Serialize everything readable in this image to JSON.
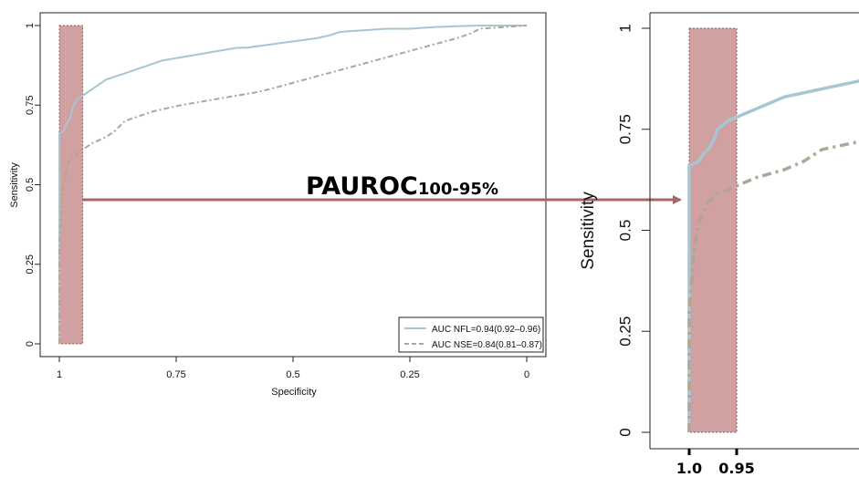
{
  "chart_data": [
    {
      "type": "line",
      "xlabel": "Specificity",
      "ylabel": "Sensitivity",
      "xlim": [
        1,
        0
      ],
      "ylim": [
        0,
        1
      ],
      "x_ticks": [
        "1",
        "0.75",
        "0.5",
        "0.25",
        "0"
      ],
      "y_ticks": [
        "0",
        "0.25",
        "0.5",
        "0.75",
        "1"
      ],
      "highlight_region": {
        "specificity_from": 1.0,
        "specificity_to": 0.95,
        "color": "#c98f8f"
      },
      "legend_position": "bottom-right",
      "series": [
        {
          "name": "AUC NFL=0.94(0.92–0.96)",
          "color": "#a8c6d2",
          "style": "solid",
          "x": [
            1.0,
            1.0,
            0.99,
            0.985,
            0.98,
            0.975,
            0.97,
            0.96,
            0.95,
            0.94,
            0.93,
            0.92,
            0.9,
            0.88,
            0.86,
            0.84,
            0.82,
            0.78,
            0.74,
            0.7,
            0.66,
            0.62,
            0.6,
            0.55,
            0.5,
            0.45,
            0.42,
            0.4,
            0.35,
            0.3,
            0.25,
            0.2,
            0.15,
            0.1,
            0.05,
            0.0
          ],
          "y": [
            0.0,
            0.66,
            0.67,
            0.69,
            0.7,
            0.72,
            0.75,
            0.77,
            0.78,
            0.79,
            0.8,
            0.81,
            0.83,
            0.84,
            0.85,
            0.86,
            0.87,
            0.89,
            0.9,
            0.91,
            0.92,
            0.93,
            0.93,
            0.94,
            0.95,
            0.96,
            0.97,
            0.98,
            0.985,
            0.99,
            0.99,
            0.995,
            0.998,
            1.0,
            1.0,
            1.0
          ]
        },
        {
          "name": "AUC NSE=0.84(0.81–0.87)",
          "color": "#b0a596",
          "style": "dashed",
          "x": [
            1.0,
            1.0,
            0.995,
            0.99,
            0.98,
            0.97,
            0.96,
            0.95,
            0.93,
            0.9,
            0.88,
            0.86,
            0.84,
            0.82,
            0.8,
            0.77,
            0.74,
            0.7,
            0.66,
            0.62,
            0.58,
            0.55,
            0.5,
            0.45,
            0.4,
            0.35,
            0.3,
            0.25,
            0.2,
            0.15,
            0.12,
            0.1,
            0.05,
            0.0
          ],
          "y": [
            0.0,
            0.3,
            0.45,
            0.52,
            0.57,
            0.59,
            0.6,
            0.61,
            0.63,
            0.65,
            0.67,
            0.7,
            0.71,
            0.72,
            0.73,
            0.74,
            0.75,
            0.76,
            0.77,
            0.78,
            0.79,
            0.8,
            0.82,
            0.84,
            0.86,
            0.88,
            0.9,
            0.92,
            0.94,
            0.96,
            0.975,
            0.99,
            0.995,
            1.0
          ]
        }
      ],
      "annotation": {
        "main": "PAUROC",
        "subscript": "100-95%",
        "arrow_color": "#a8646b"
      }
    },
    {
      "type": "line",
      "ylabel": "Sensitivity",
      "xlim": [
        1,
        0.63
      ],
      "ylim": [
        0,
        1
      ],
      "x_ticks": [
        "1.0",
        "0.95"
      ],
      "y_ticks": [
        "0",
        "0.25",
        "0.5",
        "0.75",
        "1"
      ],
      "highlight_region": {
        "specificity_from": 1.0,
        "specificity_to": 0.95,
        "color": "#c98f8f"
      }
    }
  ]
}
